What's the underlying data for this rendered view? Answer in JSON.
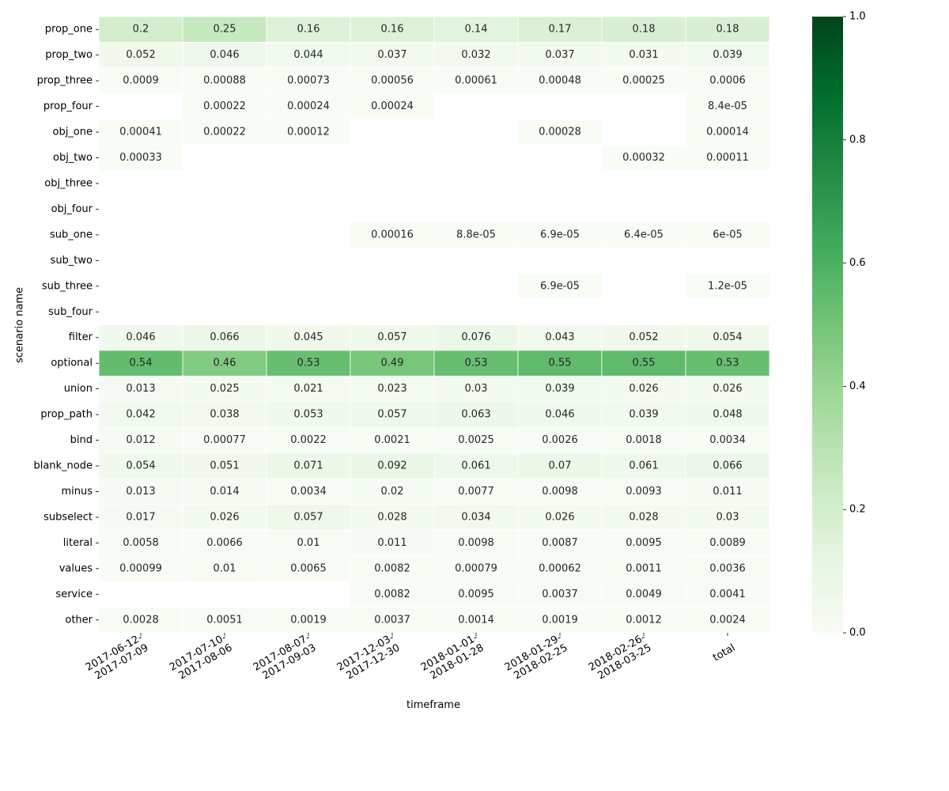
{
  "chart_data": {
    "type": "heatmap",
    "title": "",
    "xlabel": "timeframe",
    "ylabel": "scenario name",
    "x_categories": [
      [
        "2017-06-12-",
        "2017-07-09"
      ],
      [
        "2017-07-10-",
        "2017-08-06"
      ],
      [
        "2017-08-07-",
        "2017-09-03"
      ],
      [
        "2017-12-03-",
        "2017-12-30"
      ],
      [
        "2018-01-01-",
        "2018-01-28"
      ],
      [
        "2018-01-29-",
        "2018-02-25"
      ],
      [
        "2018-02-26-",
        "2018-03-25"
      ],
      [
        "total"
      ]
    ],
    "y_categories": [
      "prop_one",
      "prop_two",
      "prop_three",
      "prop_four",
      "obj_one",
      "obj_two",
      "obj_three",
      "obj_four",
      "sub_one",
      "sub_two",
      "sub_three",
      "sub_four",
      "filter",
      "optional",
      "union",
      "prop_path",
      "bind",
      "blank_node",
      "minus",
      "subselect",
      "literal",
      "values",
      "service",
      "other"
    ],
    "values": [
      [
        0.2,
        0.25,
        0.16,
        0.16,
        0.14,
        0.17,
        0.18,
        0.18
      ],
      [
        0.052,
        0.046,
        0.044,
        0.037,
        0.032,
        0.037,
        0.031,
        0.039
      ],
      [
        0.0009,
        0.00088,
        0.00073,
        0.00056,
        0.00061,
        0.00048,
        0.00025,
        0.0006
      ],
      [
        null,
        0.00022,
        0.00024,
        0.00024,
        null,
        null,
        null,
        8.4e-05
      ],
      [
        0.00041,
        0.00022,
        0.00012,
        null,
        null,
        0.00028,
        null,
        0.00014
      ],
      [
        0.00033,
        null,
        null,
        null,
        null,
        null,
        0.00032,
        0.00011
      ],
      [
        null,
        null,
        null,
        null,
        null,
        null,
        null,
        null
      ],
      [
        null,
        null,
        null,
        null,
        null,
        null,
        null,
        null
      ],
      [
        null,
        null,
        null,
        0.00016,
        8.8e-05,
        6.9e-05,
        6.4e-05,
        6e-05
      ],
      [
        null,
        null,
        null,
        null,
        null,
        null,
        null,
        null
      ],
      [
        null,
        null,
        null,
        null,
        null,
        6.9e-05,
        null,
        1.2e-05
      ],
      [
        null,
        null,
        null,
        null,
        null,
        null,
        null,
        null
      ],
      [
        0.046,
        0.066,
        0.045,
        0.057,
        0.076,
        0.043,
        0.052,
        0.054
      ],
      [
        0.54,
        0.46,
        0.53,
        0.49,
        0.53,
        0.55,
        0.55,
        0.53
      ],
      [
        0.013,
        0.025,
        0.021,
        0.023,
        0.03,
        0.039,
        0.026,
        0.026
      ],
      [
        0.042,
        0.038,
        0.053,
        0.057,
        0.063,
        0.046,
        0.039,
        0.048
      ],
      [
        0.012,
        0.00077,
        0.0022,
        0.0021,
        0.0025,
        0.0026,
        0.0018,
        0.0034
      ],
      [
        0.054,
        0.051,
        0.071,
        0.092,
        0.061,
        0.07,
        0.061,
        0.066
      ],
      [
        0.013,
        0.014,
        0.0034,
        0.02,
        0.0077,
        0.0098,
        0.0093,
        0.011
      ],
      [
        0.017,
        0.026,
        0.057,
        0.028,
        0.034,
        0.026,
        0.028,
        0.03
      ],
      [
        0.0058,
        0.0066,
        0.01,
        0.011,
        0.0098,
        0.0087,
        0.0095,
        0.0089
      ],
      [
        0.00099,
        0.01,
        0.0065,
        0.0082,
        0.00079,
        0.00062,
        0.0011,
        0.0036
      ],
      [
        null,
        null,
        null,
        0.0082,
        0.0095,
        0.0037,
        0.0049,
        0.0041
      ],
      [
        0.0028,
        0.0051,
        0.0019,
        0.0037,
        0.0014,
        0.0019,
        0.0012,
        0.0024
      ]
    ],
    "labels": [
      [
        "0.2",
        "0.25",
        "0.16",
        "0.16",
        "0.14",
        "0.17",
        "0.18",
        "0.18"
      ],
      [
        "0.052",
        "0.046",
        "0.044",
        "0.037",
        "0.032",
        "0.037",
        "0.031",
        "0.039"
      ],
      [
        "0.0009",
        "0.00088",
        "0.00073",
        "0.00056",
        "0.00061",
        "0.00048",
        "0.00025",
        "0.0006"
      ],
      [
        "",
        "0.00022",
        "0.00024",
        "0.00024",
        "",
        "",
        "",
        "8.4e-05"
      ],
      [
        "0.00041",
        "0.00022",
        "0.00012",
        "",
        "",
        "0.00028",
        "",
        "0.00014"
      ],
      [
        "0.00033",
        "",
        "",
        "",
        "",
        "",
        "0.00032",
        "0.00011"
      ],
      [
        "",
        "",
        "",
        "",
        "",
        "",
        "",
        ""
      ],
      [
        "",
        "",
        "",
        "",
        "",
        "",
        "",
        ""
      ],
      [
        "",
        "",
        "",
        "0.00016",
        "8.8e-05",
        "6.9e-05",
        "6.4e-05",
        "6e-05"
      ],
      [
        "",
        "",
        "",
        "",
        "",
        "",
        "",
        ""
      ],
      [
        "",
        "",
        "",
        "",
        "",
        "6.9e-05",
        "",
        "1.2e-05"
      ],
      [
        "",
        "",
        "",
        "",
        "",
        "",
        "",
        ""
      ],
      [
        "0.046",
        "0.066",
        "0.045",
        "0.057",
        "0.076",
        "0.043",
        "0.052",
        "0.054"
      ],
      [
        "0.54",
        "0.46",
        "0.53",
        "0.49",
        "0.53",
        "0.55",
        "0.55",
        "0.53"
      ],
      [
        "0.013",
        "0.025",
        "0.021",
        "0.023",
        "0.03",
        "0.039",
        "0.026",
        "0.026"
      ],
      [
        "0.042",
        "0.038",
        "0.053",
        "0.057",
        "0.063",
        "0.046",
        "0.039",
        "0.048"
      ],
      [
        "0.012",
        "0.00077",
        "0.0022",
        "0.0021",
        "0.0025",
        "0.0026",
        "0.0018",
        "0.0034"
      ],
      [
        "0.054",
        "0.051",
        "0.071",
        "0.092",
        "0.061",
        "0.07",
        "0.061",
        "0.066"
      ],
      [
        "0.013",
        "0.014",
        "0.0034",
        "0.02",
        "0.0077",
        "0.0098",
        "0.0093",
        "0.011"
      ],
      [
        "0.017",
        "0.026",
        "0.057",
        "0.028",
        "0.034",
        "0.026",
        "0.028",
        "0.03"
      ],
      [
        "0.0058",
        "0.0066",
        "0.01",
        "0.011",
        "0.0098",
        "0.0087",
        "0.0095",
        "0.0089"
      ],
      [
        "0.00099",
        "0.01",
        "0.0065",
        "0.0082",
        "0.00079",
        "0.00062",
        "0.0011",
        "0.0036"
      ],
      [
        "",
        "",
        "",
        "0.0082",
        "0.0095",
        "0.0037",
        "0.0049",
        "0.0041"
      ],
      [
        "0.0028",
        "0.0051",
        "0.0019",
        "0.0037",
        "0.0014",
        "0.0019",
        "0.0012",
        "0.0024"
      ]
    ],
    "vmin": 0,
    "vmax": 1,
    "colormap": "Greens",
    "colormap_stops": [
      "#f7fcf5",
      "#e5f5e0",
      "#c7e9c0",
      "#a1d99b",
      "#74c476",
      "#41ab5d",
      "#238b45",
      "#006d2c",
      "#00441b"
    ],
    "colorbar_ticks": [
      "0.0",
      "0.2",
      "0.4",
      "0.6",
      "0.8",
      "1.0"
    ],
    "colorbar_tick_values": [
      0,
      0.2,
      0.4,
      0.6,
      0.8,
      1.0
    ],
    "grid": false,
    "cell_borders": "white",
    "missing_cells": "blank"
  }
}
